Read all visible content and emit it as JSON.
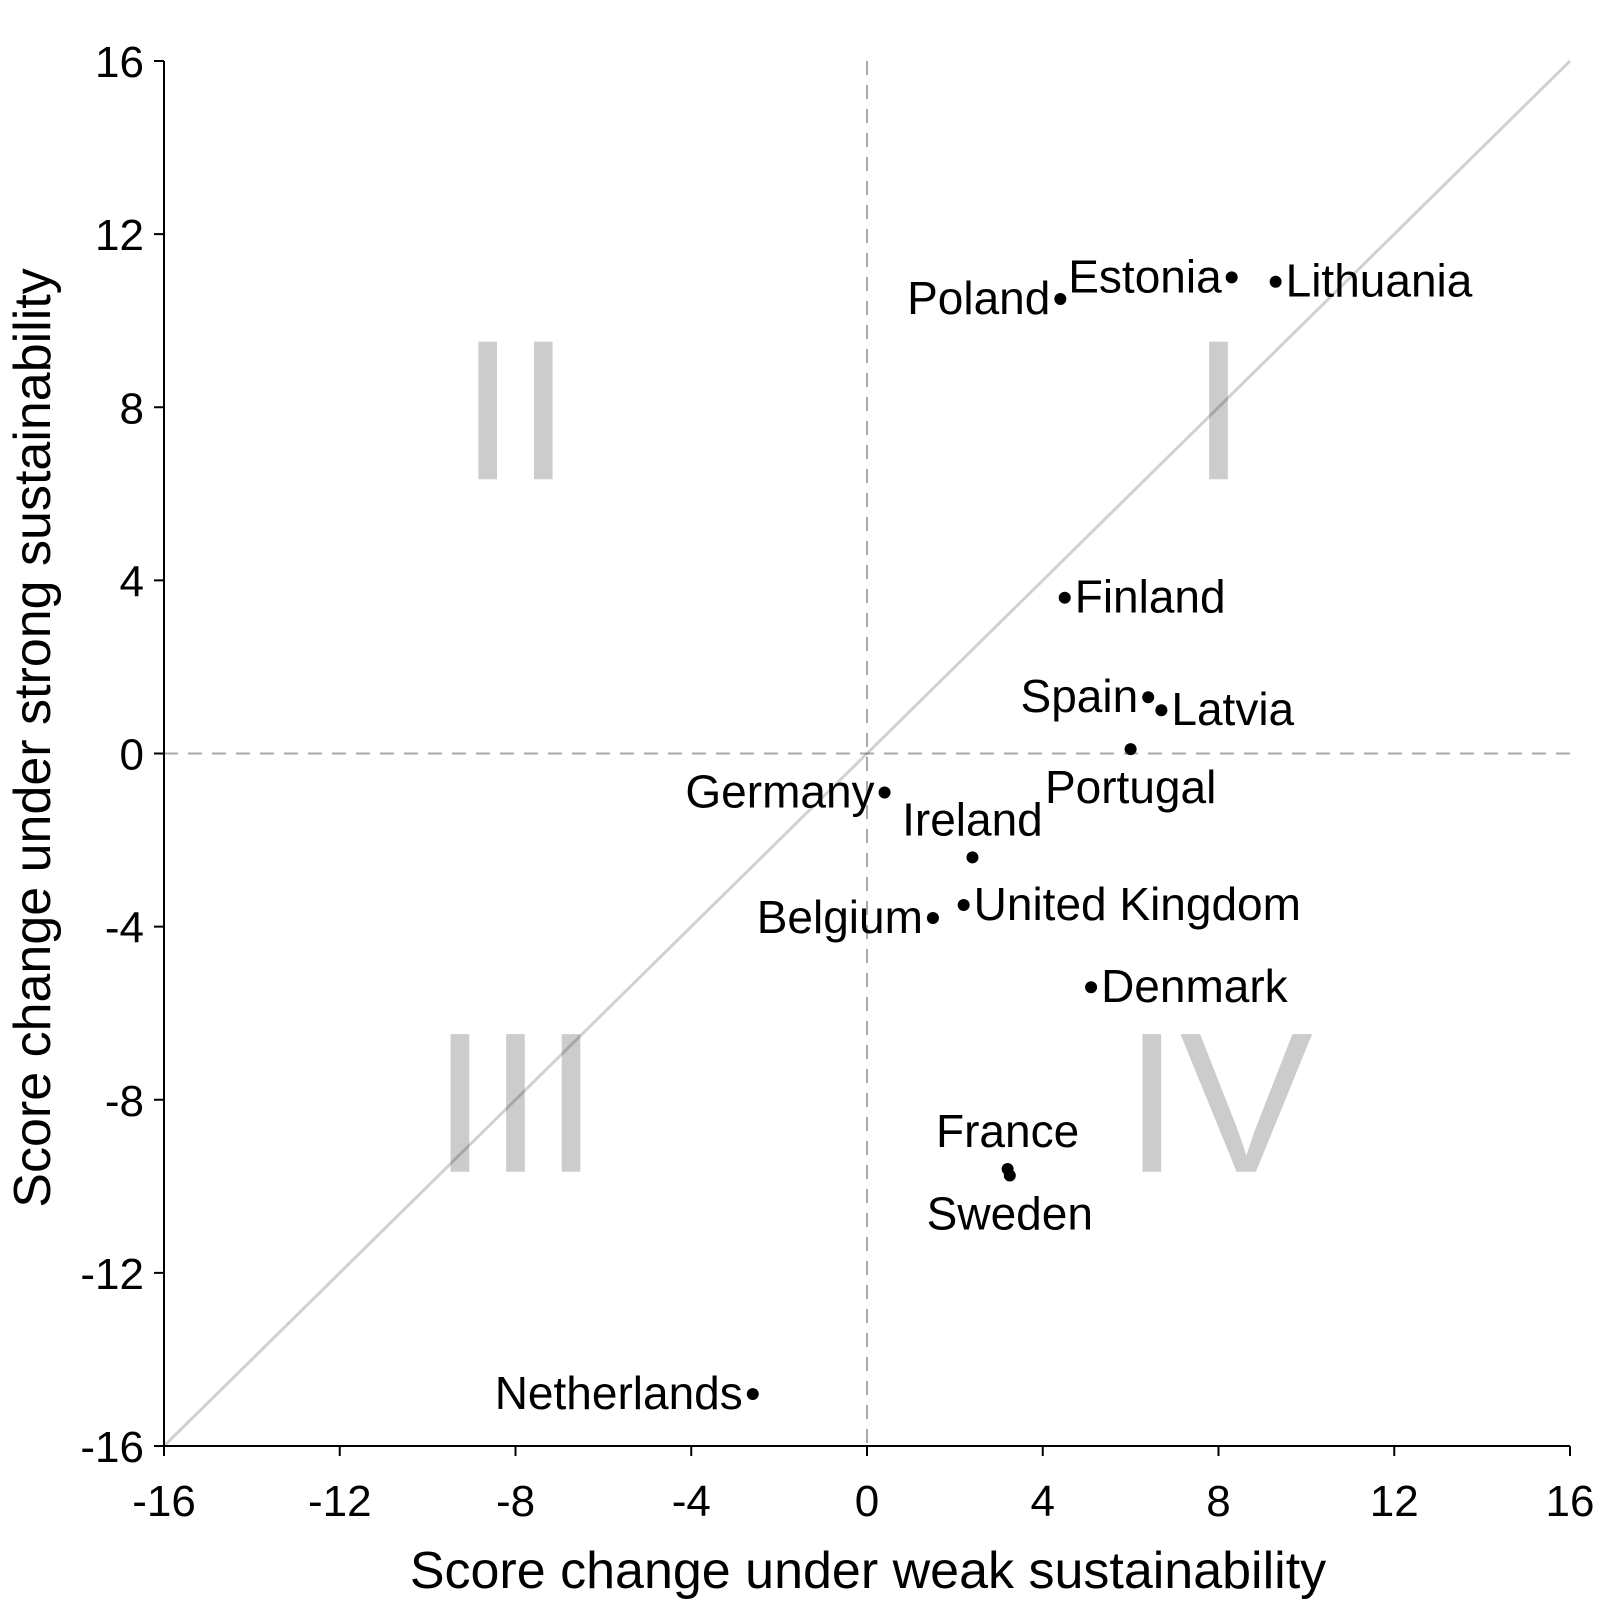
{
  "chart_data": {
    "type": "scatter",
    "title": "",
    "xlabel": "Score change under weak sustainability",
    "ylabel": "Score change under strong sustainability",
    "xlim": [
      -16,
      16
    ],
    "ylim": [
      -16,
      16
    ],
    "xticks": [
      "-16",
      "-12",
      "-8",
      "-4",
      "0",
      "4",
      "8",
      "12",
      "16"
    ],
    "yticks": [
      "16",
      "12",
      "8",
      "4",
      "0",
      "-4",
      "-8",
      "-12",
      "-16"
    ],
    "reference_lines": [
      "x=0 dashed",
      "y=0 dashed",
      "y=x diagonal"
    ],
    "quadrants": [
      {
        "label": "I",
        "x": 8,
        "y": 8
      },
      {
        "label": "II",
        "x": -8,
        "y": 8
      },
      {
        "label": "III",
        "x": -8,
        "y": -8
      },
      {
        "label": "IV",
        "x": 8,
        "y": -8
      }
    ],
    "points": [
      {
        "label": "Poland",
        "x": 4.4,
        "y": 10.5,
        "anchor": "end"
      },
      {
        "label": "Estonia",
        "x": 8.3,
        "y": 11.0,
        "anchor": "end"
      },
      {
        "label": "Lithuania",
        "x": 9.3,
        "y": 10.9,
        "anchor": "start"
      },
      {
        "label": "Finland",
        "x": 4.5,
        "y": 3.6,
        "anchor": "start"
      },
      {
        "label": "Spain",
        "x": 6.4,
        "y": 1.3,
        "anchor": "end"
      },
      {
        "label": "Latvia",
        "x": 6.7,
        "y": 1.0,
        "anchor": "start"
      },
      {
        "label": "Portugal",
        "x": 6.0,
        "y": 0.1,
        "anchor": "below"
      },
      {
        "label": "Germany",
        "x": 0.4,
        "y": -0.9,
        "anchor": "end"
      },
      {
        "label": "Ireland",
        "x": 2.4,
        "y": -2.4,
        "anchor": "above"
      },
      {
        "label": "United Kingdom",
        "x": 2.2,
        "y": -3.5,
        "anchor": "start"
      },
      {
        "label": "Belgium",
        "x": 1.5,
        "y": -3.8,
        "anchor": "end"
      },
      {
        "label": "Denmark",
        "x": 5.1,
        "y": -5.4,
        "anchor": "start"
      },
      {
        "label": "France",
        "x": 3.2,
        "y": -9.6,
        "anchor": "above"
      },
      {
        "label": "Sweden",
        "x": 3.25,
        "y": -9.75,
        "anchor": "below"
      },
      {
        "label": "Netherlands",
        "x": -2.6,
        "y": -14.8,
        "anchor": "end"
      }
    ]
  }
}
